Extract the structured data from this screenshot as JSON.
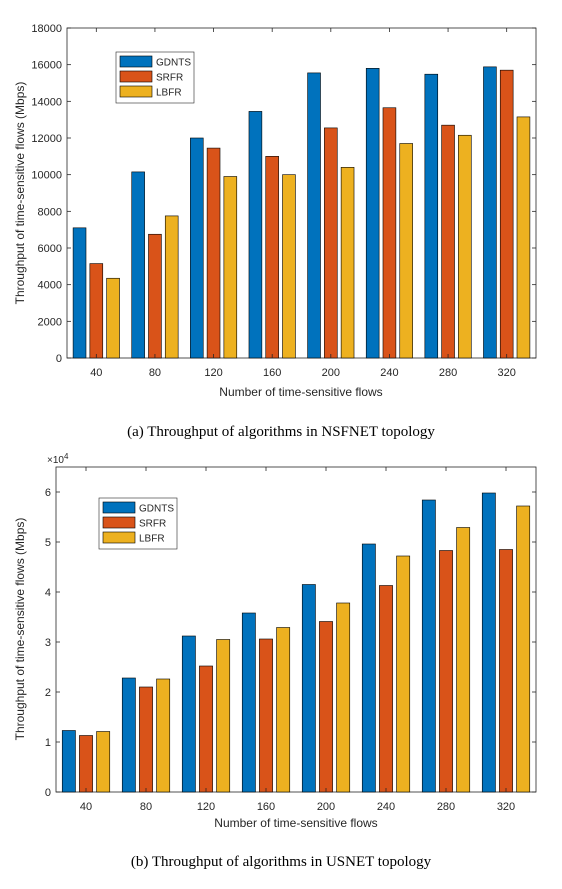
{
  "chart_data": [
    {
      "type": "bar",
      "caption": "(a) Throughput of algorithms in NSFNET topology",
      "xlabel": "Number of time-sensitive flows",
      "ylabel": "Throughput of time-sensitive flows (Mbps)",
      "categories": [
        "40",
        "80",
        "120",
        "160",
        "200",
        "240",
        "280",
        "320"
      ],
      "ylim": [
        0,
        18000
      ],
      "yticks": [
        0,
        2000,
        4000,
        6000,
        8000,
        10000,
        12000,
        14000,
        16000,
        18000
      ],
      "ytick_labels": [
        "0",
        "2000",
        "4000",
        "6000",
        "8000",
        "10000",
        "12000",
        "14000",
        "16000",
        "18000"
      ],
      "y_exponent": "",
      "legend_position": "top-left",
      "series": [
        {
          "name": "GDNTS",
          "color": "#0072BD",
          "values": [
            7100,
            10150,
            12000,
            13450,
            15550,
            15800,
            15480,
            15880
          ]
        },
        {
          "name": "SRFR",
          "color": "#D95319",
          "values": [
            5150,
            6750,
            11450,
            11000,
            12550,
            13650,
            12700,
            15700
          ]
        },
        {
          "name": "LBFR",
          "color": "#EDB120",
          "values": [
            4350,
            7750,
            9900,
            10000,
            10400,
            11700,
            12150,
            13150
          ]
        }
      ]
    },
    {
      "type": "bar",
      "caption": "(b) Throughput of algorithms in USNET topology",
      "xlabel": "Number of time-sensitive flows",
      "ylabel": "Throughput of time-sensitive flows (Mbps)",
      "categories": [
        "40",
        "80",
        "120",
        "160",
        "200",
        "240",
        "280",
        "320"
      ],
      "ylim": [
        0,
        65000
      ],
      "yticks": [
        0,
        10000,
        20000,
        30000,
        40000,
        50000,
        60000
      ],
      "ytick_labels": [
        "0",
        "1",
        "2",
        "3",
        "4",
        "5",
        "6"
      ],
      "y_exponent": "×10",
      "y_exponent_power": "4",
      "legend_position": "top-left",
      "series": [
        {
          "name": "GDNTS",
          "color": "#0072BD",
          "values": [
            12300,
            22800,
            31200,
            35800,
            41500,
            49600,
            58400,
            59800
          ]
        },
        {
          "name": "SRFR",
          "color": "#D95319",
          "values": [
            11300,
            21000,
            25200,
            30600,
            34100,
            41300,
            48300,
            48500
          ]
        },
        {
          "name": "LBFR",
          "color": "#EDB120",
          "values": [
            12100,
            22600,
            30500,
            32900,
            37800,
            47200,
            52900,
            57200
          ]
        }
      ]
    }
  ]
}
